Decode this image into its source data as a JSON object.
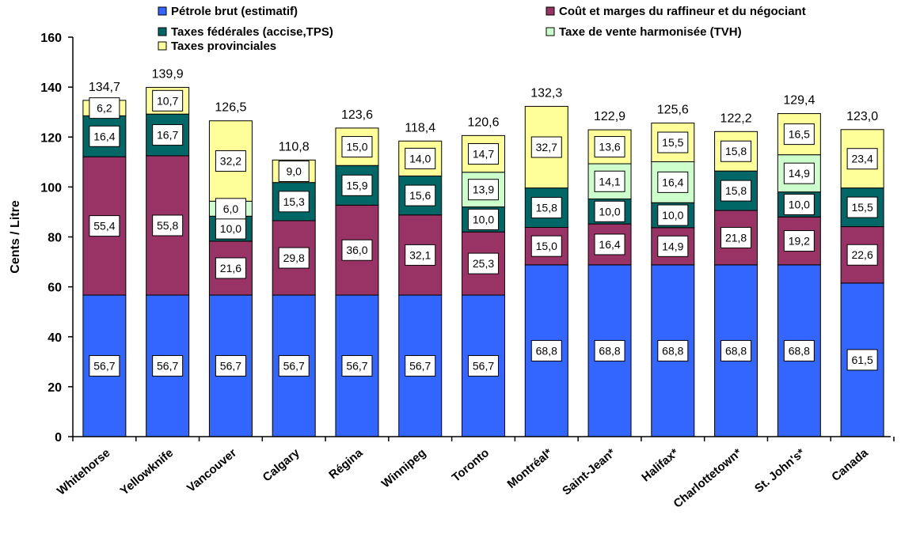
{
  "chart_data": {
    "type": "bar",
    "stacked": true,
    "ylabel": "Cents / Litre",
    "ylim": [
      0,
      160
    ],
    "yticks": [
      0,
      20,
      40,
      60,
      80,
      100,
      120,
      140,
      160
    ],
    "categories": [
      "Whitehorse",
      "Yellowknife",
      "Vancouver",
      "Calgary",
      "Régina",
      "Winnipeg",
      "Toronto",
      "Montréal*",
      "Saint-Jean*",
      "Halifax*",
      "Charlottetown*",
      "St. John's*",
      "Canada"
    ],
    "totals": [
      "134,7",
      "139,9",
      "126,5",
      "110,8",
      "123,6",
      "118,4",
      "120,6",
      "132,3",
      "122,9",
      "125,6",
      "122,2",
      "129,4",
      "123,0"
    ],
    "series": [
      {
        "name": "Pétrole brut (estimatif)",
        "color": "#3366ff",
        "values": [
          56.7,
          56.7,
          56.7,
          56.7,
          56.7,
          56.7,
          56.7,
          68.8,
          68.8,
          68.8,
          68.8,
          68.8,
          61.5
        ],
        "labels": [
          "56,7",
          "56,7",
          "56,7",
          "56,7",
          "56,7",
          "56,7",
          "56,7",
          "68,8",
          "68,8",
          "68,8",
          "68,8",
          "68,8",
          "61,5"
        ]
      },
      {
        "name": "Coût et marges du raffineur et du négociant",
        "color": "#993366",
        "values": [
          55.4,
          55.8,
          21.6,
          29.8,
          36.0,
          32.1,
          25.3,
          15.0,
          16.4,
          14.9,
          21.8,
          19.2,
          22.6
        ],
        "labels": [
          "55,4",
          "55,8",
          "21,6",
          "29,8",
          "36,0",
          "32,1",
          "25,3",
          "15,0",
          "16,4",
          "14,9",
          "21,8",
          "19,2",
          "22,6"
        ]
      },
      {
        "name": "Taxes fédérales (accise,TPS)",
        "color": "#006666",
        "values": [
          16.4,
          16.7,
          10.0,
          15.3,
          15.9,
          15.6,
          10.0,
          15.8,
          10.0,
          10.0,
          15.8,
          10.0,
          15.5
        ],
        "labels": [
          "16,4",
          "16,7",
          "10,0",
          "15,3",
          "15,9",
          "15,6",
          "10,0",
          "15,8",
          "10,0",
          "10,0",
          "15,8",
          "10,0",
          "15,5"
        ]
      },
      {
        "name": "Taxe de vente harmonisée (TVH)",
        "color": "#ccffcc",
        "values": [
          0,
          0,
          6.0,
          0,
          0,
          0,
          13.9,
          0,
          14.1,
          16.4,
          0,
          14.9,
          0
        ],
        "labels": [
          "",
          "",
          "6,0",
          "",
          "",
          "",
          "13,9",
          "",
          "14,1",
          "16,4",
          "",
          "14,9",
          ""
        ]
      },
      {
        "name": "Taxes provinciales",
        "color": "#ffff99",
        "values": [
          6.2,
          10.7,
          32.2,
          9.0,
          15.0,
          14.0,
          14.7,
          32.7,
          13.6,
          15.5,
          15.8,
          16.5,
          23.4
        ],
        "labels": [
          "6,2",
          "10,7",
          "32,2",
          "9,0",
          "15,0",
          "14,0",
          "14,7",
          "32,7",
          "13,6",
          "15,5",
          "15,8",
          "16,5",
          "23,4"
        ]
      }
    ],
    "legend_position": "top",
    "grid": false
  }
}
